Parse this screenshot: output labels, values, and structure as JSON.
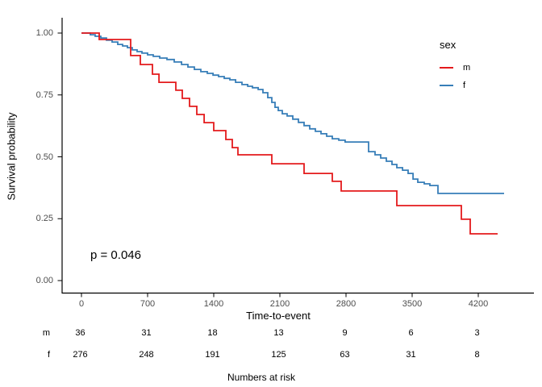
{
  "annotation": {
    "p_value_label": "p = 0.046"
  },
  "legend": {
    "title": "sex",
    "items": [
      {
        "label": "m",
        "color": "#E41A1C"
      },
      {
        "label": "f",
        "color": "#377EB8"
      }
    ]
  },
  "axes": {
    "x_label": "Time-to-event",
    "y_label": "Survival probability",
    "x_ticks": [
      0,
      700,
      1400,
      2100,
      2800,
      3500,
      4200
    ],
    "x_tick_labels": [
      "0",
      "700",
      "1400",
      "2100",
      "2800",
      "3500",
      "4200"
    ],
    "y_ticks": [
      0.0,
      0.25,
      0.5,
      0.75,
      1.0
    ],
    "y_tick_labels": [
      "0.00",
      "0.25",
      "0.50",
      "0.75",
      "1.00"
    ]
  },
  "risk_table": {
    "caption": "Numbers at risk",
    "times": [
      0,
      700,
      1400,
      2100,
      2800,
      3500,
      4200
    ],
    "rows": [
      {
        "label": "m",
        "values": [
          "36",
          "31",
          "18",
          "13",
          "9",
          "6",
          "3"
        ]
      },
      {
        "label": "f",
        "values": [
          "276",
          "248",
          "191",
          "125",
          "63",
          "31",
          "8"
        ]
      }
    ]
  },
  "chart_data": {
    "type": "line",
    "subtype": "kaplan-meier-step",
    "title": "",
    "xlabel": "Time-to-event",
    "ylabel": "Survival probability",
    "xlim": [
      0,
      4500
    ],
    "ylim": [
      0.0,
      1.0
    ],
    "grid": false,
    "legend_position": "right",
    "annotations": [
      "p = 0.046"
    ],
    "series": [
      {
        "name": "m",
        "color": "#E41A1C",
        "end_time": 4405,
        "points": [
          [
            0,
            1.0
          ],
          [
            188,
            0.974
          ],
          [
            521,
            0.909
          ],
          [
            623,
            0.873
          ],
          [
            751,
            0.834
          ],
          [
            820,
            0.801
          ],
          [
            999,
            0.769
          ],
          [
            1067,
            0.736
          ],
          [
            1144,
            0.704
          ],
          [
            1221,
            0.671
          ],
          [
            1298,
            0.638
          ],
          [
            1400,
            0.606
          ],
          [
            1528,
            0.57
          ],
          [
            1596,
            0.537
          ],
          [
            1656,
            0.508
          ],
          [
            2015,
            0.472
          ],
          [
            2356,
            0.433
          ],
          [
            2655,
            0.401
          ],
          [
            2749,
            0.362
          ],
          [
            3338,
            0.303
          ],
          [
            4021,
            0.248
          ],
          [
            4115,
            0.189
          ]
        ]
      },
      {
        "name": "f",
        "color": "#377EB8",
        "end_time": 4473,
        "points": [
          [
            0,
            1.0
          ],
          [
            94,
            0.993
          ],
          [
            145,
            0.987
          ],
          [
            205,
            0.98
          ],
          [
            265,
            0.971
          ],
          [
            324,
            0.964
          ],
          [
            384,
            0.954
          ],
          [
            435,
            0.948
          ],
          [
            487,
            0.941
          ],
          [
            538,
            0.932
          ],
          [
            589,
            0.925
          ],
          [
            640,
            0.919
          ],
          [
            700,
            0.912
          ],
          [
            760,
            0.906
          ],
          [
            828,
            0.899
          ],
          [
            905,
            0.893
          ],
          [
            982,
            0.883
          ],
          [
            1059,
            0.873
          ],
          [
            1127,
            0.863
          ],
          [
            1195,
            0.853
          ],
          [
            1263,
            0.844
          ],
          [
            1332,
            0.837
          ],
          [
            1392,
            0.83
          ],
          [
            1451,
            0.824
          ],
          [
            1511,
            0.817
          ],
          [
            1571,
            0.811
          ],
          [
            1631,
            0.801
          ],
          [
            1699,
            0.792
          ],
          [
            1759,
            0.785
          ],
          [
            1810,
            0.779
          ],
          [
            1870,
            0.772
          ],
          [
            1921,
            0.759
          ],
          [
            1972,
            0.739
          ],
          [
            2015,
            0.72
          ],
          [
            2049,
            0.7
          ],
          [
            2083,
            0.687
          ],
          [
            2126,
            0.674
          ],
          [
            2177,
            0.665
          ],
          [
            2237,
            0.652
          ],
          [
            2296,
            0.639
          ],
          [
            2356,
            0.626
          ],
          [
            2416,
            0.613
          ],
          [
            2476,
            0.603
          ],
          [
            2535,
            0.593
          ],
          [
            2595,
            0.583
          ],
          [
            2655,
            0.573
          ],
          [
            2723,
            0.567
          ],
          [
            2791,
            0.56
          ],
          [
            3039,
            0.521
          ],
          [
            3107,
            0.508
          ],
          [
            3167,
            0.495
          ],
          [
            3227,
            0.482
          ],
          [
            3287,
            0.469
          ],
          [
            3338,
            0.456
          ],
          [
            3398,
            0.446
          ],
          [
            3457,
            0.433
          ],
          [
            3509,
            0.41
          ],
          [
            3560,
            0.397
          ],
          [
            3628,
            0.391
          ],
          [
            3688,
            0.384
          ],
          [
            3773,
            0.352
          ]
        ]
      }
    ]
  }
}
